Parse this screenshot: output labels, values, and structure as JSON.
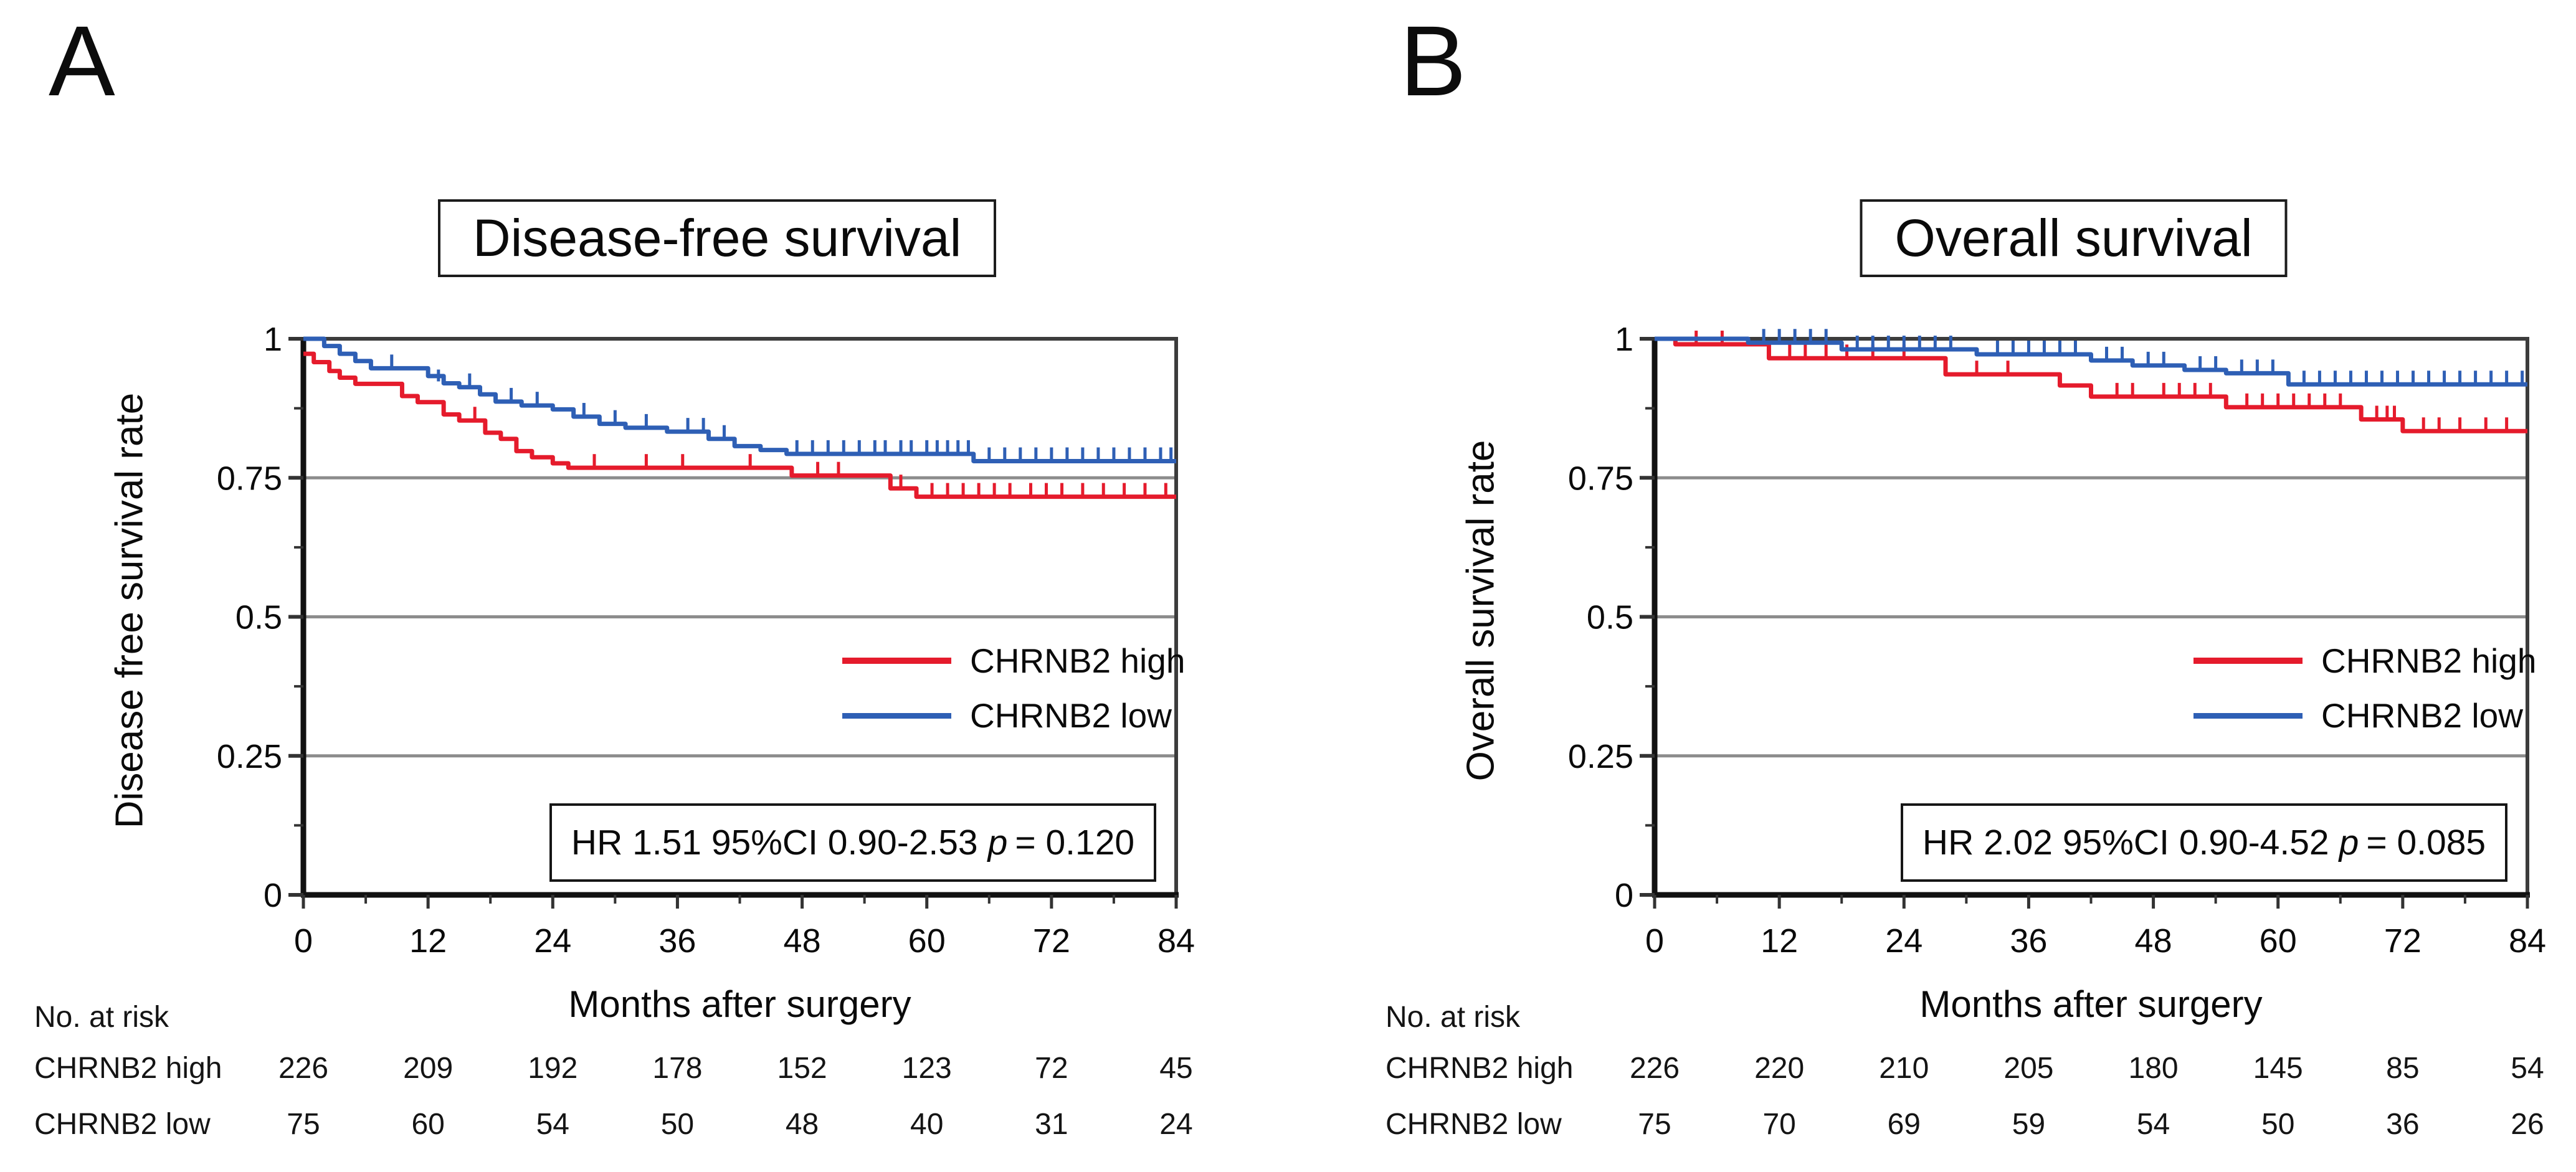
{
  "figure": {
    "panel_labels": [
      "A",
      "B"
    ],
    "accent_red": "#e51b2c",
    "accent_blue": "#2e5fb5",
    "gridline_color": "#8c8c8c",
    "frame_color": "#3c3c3c"
  },
  "chart_data": [
    {
      "type": "line",
      "subtype": "kaplan-meier-step",
      "panel_label": "A",
      "title": "Disease-free survival",
      "ylabel": "Disease free survival rate",
      "xlabel": "Months after surgery",
      "xlim": [
        0,
        84
      ],
      "ylim": [
        0,
        1
      ],
      "xticks": [
        0,
        12,
        24,
        36,
        48,
        60,
        72,
        84
      ],
      "yticks": [
        1,
        0.75,
        0.5,
        0.25,
        0
      ],
      "ytick_labels": [
        "1",
        "0.75",
        "0.5",
        "0.25",
        "0"
      ],
      "grid_values": [
        0.75,
        0.5,
        0.25
      ],
      "legend_position": "center-right",
      "legend": [
        {
          "label": "CHRNB2 high",
          "color": "#e51b2c"
        },
        {
          "label": "CHRNB2 low",
          "color": "#2e5fb5"
        }
      ],
      "hr_prefix": "HR 1.51 95%CI 0.90-2.53",
      "hr_p_label": "p",
      "hr_suffix": "= 0.120",
      "series": [
        {
          "name": "CHRNB2 high",
          "color": "#e51b2c",
          "steps": [
            [
              0,
              0.973
            ],
            [
              1,
              0.958
            ],
            [
              2.5,
              0.942
            ],
            [
              3.5,
              0.93
            ],
            [
              5,
              0.919
            ],
            [
              9.5,
              0.897
            ],
            [
              11,
              0.886
            ],
            [
              13.5,
              0.864
            ],
            [
              15,
              0.853
            ],
            [
              17.5,
              0.831
            ],
            [
              19,
              0.82
            ],
            [
              20.5,
              0.798
            ],
            [
              22,
              0.787
            ],
            [
              24,
              0.776
            ],
            [
              25.5,
              0.768
            ],
            [
              47,
              0.754
            ],
            [
              56.5,
              0.731
            ],
            [
              59,
              0.716
            ]
          ],
          "censors": [
            [
              16.5,
              0.853
            ],
            [
              28,
              0.768
            ],
            [
              33,
              0.768
            ],
            [
              36.5,
              0.768
            ],
            [
              43,
              0.768
            ],
            [
              49.5,
              0.754
            ],
            [
              51.5,
              0.754
            ],
            [
              57.5,
              0.731
            ],
            [
              60.5,
              0.716
            ],
            [
              62,
              0.716
            ],
            [
              63.5,
              0.716
            ],
            [
              65,
              0.716
            ],
            [
              66.5,
              0.716
            ],
            [
              68,
              0.716
            ],
            [
              70,
              0.716
            ],
            [
              71.5,
              0.716
            ],
            [
              73,
              0.716
            ],
            [
              75,
              0.716
            ],
            [
              77,
              0.716
            ],
            [
              79,
              0.716
            ],
            [
              81,
              0.716
            ],
            [
              83,
              0.716
            ]
          ]
        },
        {
          "name": "CHRNB2 low",
          "color": "#2e5fb5",
          "steps": [
            [
              0,
              1.0
            ],
            [
              2,
              0.987
            ],
            [
              3.5,
              0.973
            ],
            [
              5,
              0.96
            ],
            [
              6.5,
              0.947
            ],
            [
              12,
              0.933
            ],
            [
              13.5,
              0.92
            ],
            [
              15,
              0.913
            ],
            [
              17,
              0.9
            ],
            [
              18.5,
              0.887
            ],
            [
              21,
              0.88
            ],
            [
              24,
              0.873
            ],
            [
              26,
              0.86
            ],
            [
              28.5,
              0.847
            ],
            [
              31,
              0.84
            ],
            [
              35,
              0.833
            ],
            [
              39,
              0.82
            ],
            [
              41.5,
              0.807
            ],
            [
              44,
              0.8
            ],
            [
              46.5,
              0.793
            ],
            [
              64.5,
              0.78
            ]
          ],
          "censors": [
            [
              8.5,
              0.947
            ],
            [
              13,
              0.92
            ],
            [
              16,
              0.913
            ],
            [
              20,
              0.887
            ],
            [
              22.5,
              0.88
            ],
            [
              27,
              0.86
            ],
            [
              30,
              0.847
            ],
            [
              33,
              0.84
            ],
            [
              37,
              0.833
            ],
            [
              38.5,
              0.833
            ],
            [
              40.5,
              0.82
            ],
            [
              47.5,
              0.793
            ],
            [
              49,
              0.793
            ],
            [
              50.5,
              0.793
            ],
            [
              52,
              0.793
            ],
            [
              53.5,
              0.793
            ],
            [
              55,
              0.793
            ],
            [
              56,
              0.793
            ],
            [
              57.5,
              0.793
            ],
            [
              58.5,
              0.793
            ],
            [
              60,
              0.793
            ],
            [
              61,
              0.793
            ],
            [
              62,
              0.793
            ],
            [
              63,
              0.793
            ],
            [
              64,
              0.793
            ],
            [
              66,
              0.78
            ],
            [
              67.5,
              0.78
            ],
            [
              69,
              0.78
            ],
            [
              70.5,
              0.78
            ],
            [
              72,
              0.78
            ],
            [
              73.5,
              0.78
            ],
            [
              75,
              0.78
            ],
            [
              76.5,
              0.78
            ],
            [
              78,
              0.78
            ],
            [
              79.5,
              0.78
            ],
            [
              81,
              0.78
            ],
            [
              82.5,
              0.78
            ],
            [
              83.5,
              0.78
            ]
          ]
        }
      ],
      "at_risk": {
        "header": "No. at risk",
        "months": [
          0,
          12,
          24,
          36,
          48,
          60,
          72,
          84
        ],
        "rows": [
          {
            "label": "CHRNB2 high",
            "values": [
              226,
              209,
              192,
              178,
              152,
              123,
              72,
              45
            ]
          },
          {
            "label": "CHRNB2 low",
            "values": [
              75,
              60,
              54,
              50,
              48,
              40,
              31,
              24
            ]
          }
        ]
      }
    },
    {
      "type": "line",
      "subtype": "kaplan-meier-step",
      "panel_label": "B",
      "title": "Overall survival",
      "ylabel": "Overall survival rate",
      "xlabel": "Months after surgery",
      "xlim": [
        0,
        84
      ],
      "ylim": [
        0,
        1
      ],
      "xticks": [
        0,
        12,
        24,
        36,
        48,
        60,
        72,
        84
      ],
      "yticks": [
        1,
        0.75,
        0.5,
        0.25,
        0
      ],
      "ytick_labels": [
        "1",
        "0.75",
        "0.5",
        "0.25",
        "0"
      ],
      "grid_values": [
        0.75,
        0.5,
        0.25
      ],
      "legend_position": "center-right",
      "legend": [
        {
          "label": "CHRNB2 high",
          "color": "#e51b2c"
        },
        {
          "label": "CHRNB2 low",
          "color": "#2e5fb5"
        }
      ],
      "hr_prefix": "HR 2.02 95%CI 0.90-4.52",
      "hr_p_label": "p",
      "hr_suffix": "= 0.085",
      "series": [
        {
          "name": "CHRNB2 high",
          "color": "#e51b2c",
          "steps": [
            [
              0,
              1.0
            ],
            [
              2,
              0.99
            ],
            [
              11,
              0.965
            ],
            [
              28,
              0.936
            ],
            [
              39,
              0.916
            ],
            [
              42,
              0.896
            ],
            [
              55,
              0.877
            ],
            [
              68,
              0.855
            ],
            [
              72,
              0.834
            ]
          ],
          "censors": [
            [
              4,
              0.99
            ],
            [
              6.5,
              0.99
            ],
            [
              13,
              0.965
            ],
            [
              14.5,
              0.965
            ],
            [
              16.5,
              0.965
            ],
            [
              18.5,
              0.965
            ],
            [
              21,
              0.965
            ],
            [
              24,
              0.965
            ],
            [
              31,
              0.936
            ],
            [
              34,
              0.936
            ],
            [
              44.5,
              0.896
            ],
            [
              46,
              0.896
            ],
            [
              49,
              0.896
            ],
            [
              50.5,
              0.896
            ],
            [
              52,
              0.896
            ],
            [
              53.5,
              0.896
            ],
            [
              57,
              0.877
            ],
            [
              58.5,
              0.877
            ],
            [
              60,
              0.877
            ],
            [
              61.5,
              0.877
            ],
            [
              63,
              0.877
            ],
            [
              64.5,
              0.877
            ],
            [
              66,
              0.877
            ],
            [
              69.5,
              0.855
            ],
            [
              70.5,
              0.855
            ],
            [
              71.2,
              0.855
            ],
            [
              74,
              0.834
            ],
            [
              75.5,
              0.834
            ],
            [
              77.5,
              0.834
            ],
            [
              80,
              0.834
            ],
            [
              82,
              0.834
            ]
          ]
        },
        {
          "name": "CHRNB2 low",
          "color": "#2e5fb5",
          "steps": [
            [
              0,
              1.0
            ],
            [
              9,
              0.993
            ],
            [
              18,
              0.981
            ],
            [
              31,
              0.972
            ],
            [
              42,
              0.961
            ],
            [
              46,
              0.952
            ],
            [
              51,
              0.944
            ],
            [
              55,
              0.938
            ],
            [
              61,
              0.918
            ]
          ],
          "censors": [
            [
              10.5,
              0.993
            ],
            [
              12,
              0.993
            ],
            [
              13.5,
              0.993
            ],
            [
              15,
              0.993
            ],
            [
              16.5,
              0.993
            ],
            [
              19.5,
              0.981
            ],
            [
              21,
              0.981
            ],
            [
              22.5,
              0.981
            ],
            [
              24,
              0.981
            ],
            [
              25.5,
              0.981
            ],
            [
              27,
              0.981
            ],
            [
              28.5,
              0.981
            ],
            [
              33,
              0.972
            ],
            [
              34.5,
              0.972
            ],
            [
              36,
              0.972
            ],
            [
              37.5,
              0.972
            ],
            [
              39,
              0.972
            ],
            [
              40.5,
              0.972
            ],
            [
              43.5,
              0.961
            ],
            [
              45,
              0.961
            ],
            [
              47.5,
              0.952
            ],
            [
              49,
              0.952
            ],
            [
              52.5,
              0.944
            ],
            [
              54,
              0.944
            ],
            [
              56.5,
              0.938
            ],
            [
              58,
              0.938
            ],
            [
              59.5,
              0.938
            ],
            [
              62.5,
              0.918
            ],
            [
              64,
              0.918
            ],
            [
              65.5,
              0.918
            ],
            [
              67,
              0.918
            ],
            [
              68.5,
              0.918
            ],
            [
              70,
              0.918
            ],
            [
              71.5,
              0.918
            ],
            [
              73,
              0.918
            ],
            [
              74.5,
              0.918
            ],
            [
              76,
              0.918
            ],
            [
              77.5,
              0.918
            ],
            [
              79,
              0.918
            ],
            [
              80.5,
              0.918
            ],
            [
              82,
              0.918
            ],
            [
              83.5,
              0.918
            ]
          ]
        }
      ],
      "at_risk": {
        "header": "No. at risk",
        "months": [
          0,
          12,
          24,
          36,
          48,
          60,
          72,
          84
        ],
        "rows": [
          {
            "label": "CHRNB2 high",
            "values": [
              226,
              220,
              210,
              205,
              180,
              145,
              85,
              54
            ]
          },
          {
            "label": "CHRNB2 low",
            "values": [
              75,
              70,
              69,
              59,
              54,
              50,
              36,
              26
            ]
          }
        ]
      }
    }
  ]
}
